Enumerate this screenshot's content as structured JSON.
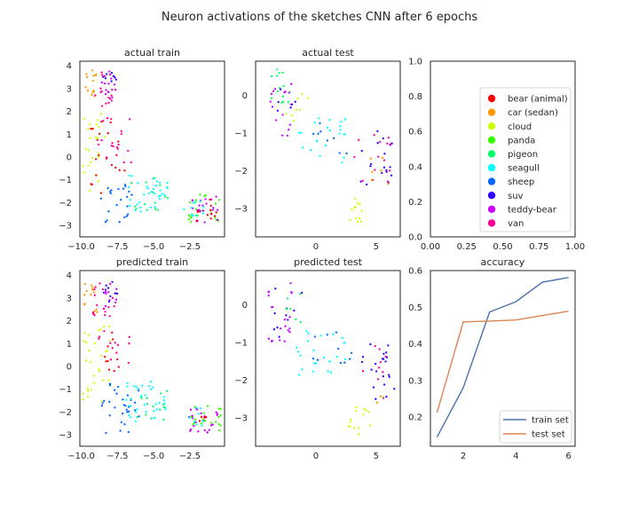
{
  "figure": {
    "title": "Neuron activations of the sketches CNN after 6 epochs"
  },
  "classes": [
    {
      "name": "bear (animal)",
      "color": "#ff0000"
    },
    {
      "name": "car (sedan)",
      "color": "#ff9900"
    },
    {
      "name": "cloud",
      "color": "#ccff00"
    },
    {
      "name": "panda",
      "color": "#33ff00"
    },
    {
      "name": "pigeon",
      "color": "#00ff66"
    },
    {
      "name": "seagull",
      "color": "#00ffff"
    },
    {
      "name": "sheep",
      "color": "#0066ff"
    },
    {
      "name": "suv",
      "color": "#3300ff"
    },
    {
      "name": "teddy-bear",
      "color": "#cc00ff"
    },
    {
      "name": "van",
      "color": "#ff0099"
    }
  ],
  "chart_data": [
    {
      "type": "scatter",
      "title": "actual train",
      "xlim": [
        -10.1,
        -0.1
      ],
      "ylim": [
        -3.5,
        4.2
      ],
      "xticks": [
        -10.0,
        -7.5,
        -5.0,
        -2.5
      ],
      "xtick_labels": [
        "−10.0",
        "−7.5",
        "−5.0",
        "−2.5"
      ],
      "yticks": [
        -3,
        -2,
        -1,
        0,
        1,
        2,
        3,
        4
      ],
      "ytick_labels": [
        "−3",
        "−2",
        "−1",
        "0",
        "1",
        "2",
        "3",
        "4"
      ],
      "clusters": [
        {
          "class": "car (sedan)",
          "x": [
            -9.8,
            -8.9
          ],
          "y": [
            2.4,
            3.8
          ],
          "n": 14
        },
        {
          "class": "van",
          "x": [
            -9.3,
            -7.6
          ],
          "y": [
            2.2,
            3.8
          ],
          "n": 16
        },
        {
          "class": "teddy-bear",
          "x": [
            -8.6,
            -7.5
          ],
          "y": [
            2.6,
            3.8
          ],
          "n": 12
        },
        {
          "class": "suv",
          "x": [
            -8.5,
            -7.6
          ],
          "y": [
            3.0,
            3.8
          ],
          "n": 8
        },
        {
          "class": "cloud",
          "x": [
            -9.9,
            -8.3
          ],
          "y": [
            -1.5,
            1.9
          ],
          "n": 24
        },
        {
          "class": "bear (animal)",
          "x": [
            -9.6,
            -6.8
          ],
          "y": [
            -1.6,
            1.6
          ],
          "n": 20
        },
        {
          "class": "van",
          "x": [
            -8.9,
            -6.5
          ],
          "y": [
            -0.3,
            1.8
          ],
          "n": 18
        },
        {
          "class": "sheep",
          "x": [
            -8.7,
            -6.3
          ],
          "y": [
            -3.0,
            -1.2
          ],
          "n": 22
        },
        {
          "class": "seagull",
          "x": [
            -6.8,
            -4.0
          ],
          "y": [
            -2.4,
            -0.8
          ],
          "n": 34
        },
        {
          "class": "pigeon",
          "x": [
            -6.6,
            -4.0
          ],
          "y": [
            -2.4,
            -0.9
          ],
          "n": 14
        },
        {
          "class": "panda",
          "x": [
            -2.6,
            -0.3
          ],
          "y": [
            -2.9,
            -1.6
          ],
          "n": 22
        },
        {
          "class": "teddy-bear",
          "x": [
            -2.6,
            -0.5
          ],
          "y": [
            -2.9,
            -1.7
          ],
          "n": 22
        },
        {
          "class": "bear (animal)",
          "x": [
            -2.3,
            -0.6
          ],
          "y": [
            -2.8,
            -1.8
          ],
          "n": 12
        },
        {
          "class": "seagull",
          "x": [
            -2.9,
            -1.5
          ],
          "y": [
            -2.6,
            -1.8
          ],
          "n": 10
        }
      ]
    },
    {
      "type": "scatter",
      "title": "actual test",
      "xlim": [
        -5.0,
        7.0
      ],
      "ylim": [
        -3.75,
        0.9
      ],
      "xticks": [
        0,
        5
      ],
      "xtick_labels": [
        "0",
        "5"
      ],
      "yticks": [
        -3,
        -2,
        -1,
        0
      ],
      "ytick_labels": [
        "−3",
        "−2",
        "−1",
        "0"
      ],
      "clusters": [
        {
          "class": "pigeon",
          "x": [
            -3.8,
            -2.0
          ],
          "y": [
            -0.2,
            0.7
          ],
          "n": 14
        },
        {
          "class": "teddy-bear",
          "x": [
            -4.0,
            -1.8
          ],
          "y": [
            -1.1,
            0.3
          ],
          "n": 16
        },
        {
          "class": "suv",
          "x": [
            -3.5,
            -1.5
          ],
          "y": [
            -0.6,
            0.6
          ],
          "n": 6
        },
        {
          "class": "cloud",
          "x": [
            -2.5,
            -0.5
          ],
          "y": [
            -0.8,
            0.2
          ],
          "n": 8
        },
        {
          "class": "seagull",
          "x": [
            -2.0,
            2.5
          ],
          "y": [
            -1.8,
            -0.6
          ],
          "n": 22
        },
        {
          "class": "sheep",
          "x": [
            -0.5,
            2.8
          ],
          "y": [
            -1.6,
            -0.5
          ],
          "n": 8
        },
        {
          "class": "suv",
          "x": [
            3.5,
            6.5
          ],
          "y": [
            -2.5,
            -0.9
          ],
          "n": 18
        },
        {
          "class": "van",
          "x": [
            3.2,
            6.3
          ],
          "y": [
            -2.3,
            -0.9
          ],
          "n": 14
        },
        {
          "class": "cloud",
          "x": [
            2.8,
            4.5
          ],
          "y": [
            -3.5,
            -2.6
          ],
          "n": 12
        },
        {
          "class": "car (sedan)",
          "x": [
            4.5,
            6.2
          ],
          "y": [
            -2.5,
            -1.6
          ],
          "n": 6
        }
      ]
    },
    {
      "type": "scatter",
      "title": "",
      "xlim": [
        0,
        1
      ],
      "ylim": [
        0,
        1
      ],
      "xticks": [
        0,
        0.25,
        0.5,
        0.75,
        1.0
      ],
      "xtick_labels": [
        "0.00",
        "0.25",
        "0.50",
        "0.75",
        "1.00"
      ],
      "yticks": [
        0,
        0.2,
        0.4,
        0.6,
        0.8,
        1.0
      ],
      "ytick_labels": [
        "0.0",
        "0.2",
        "0.4",
        "0.6",
        "0.8",
        "1.0"
      ],
      "legend": "center-right",
      "clusters": []
    },
    {
      "type": "scatter",
      "title": "predicted train",
      "xlim": [
        -10.1,
        -0.1
      ],
      "ylim": [
        -3.5,
        4.2
      ],
      "xticks": [
        -10.0,
        -7.5,
        -5.0,
        -2.5
      ],
      "xtick_labels": [
        "−10.0",
        "−7.5",
        "−5.0",
        "−2.5"
      ],
      "yticks": [
        -3,
        -2,
        -1,
        0,
        1,
        2,
        3,
        4
      ],
      "ytick_labels": [
        "−3",
        "−2",
        "−1",
        "0",
        "1",
        "2",
        "3",
        "4"
      ],
      "clusters": [
        {
          "class": "car (sedan)",
          "x": [
            -9.8,
            -8.8
          ],
          "y": [
            2.2,
            3.8
          ],
          "n": 14
        },
        {
          "class": "van",
          "x": [
            -9.2,
            -7.6
          ],
          "y": [
            2.2,
            3.8
          ],
          "n": 18
        },
        {
          "class": "suv",
          "x": [
            -8.6,
            -7.5
          ],
          "y": [
            2.8,
            3.8
          ],
          "n": 10
        },
        {
          "class": "teddy-bear",
          "x": [
            -8.5,
            -7.5
          ],
          "y": [
            2.6,
            3.6
          ],
          "n": 8
        },
        {
          "class": "cloud",
          "x": [
            -9.9,
            -8.0
          ],
          "y": [
            -1.6,
            1.9
          ],
          "n": 30
        },
        {
          "class": "bear (animal)",
          "x": [
            -9.3,
            -7.3
          ],
          "y": [
            -0.3,
            1.6
          ],
          "n": 10
        },
        {
          "class": "van",
          "x": [
            -8.9,
            -6.6
          ],
          "y": [
            0.0,
            1.6
          ],
          "n": 12
        },
        {
          "class": "sheep",
          "x": [
            -8.6,
            -5.8
          ],
          "y": [
            -3.0,
            -0.7
          ],
          "n": 30
        },
        {
          "class": "seagull",
          "x": [
            -6.9,
            -4.0
          ],
          "y": [
            -2.4,
            -0.6
          ],
          "n": 34
        },
        {
          "class": "pigeon",
          "x": [
            -6.6,
            -4.0
          ],
          "y": [
            -2.4,
            -1.0
          ],
          "n": 14
        },
        {
          "class": "panda",
          "x": [
            -2.5,
            -0.3
          ],
          "y": [
            -2.9,
            -1.6
          ],
          "n": 20
        },
        {
          "class": "teddy-bear",
          "x": [
            -2.6,
            -0.5
          ],
          "y": [
            -2.9,
            -1.8
          ],
          "n": 24
        },
        {
          "class": "seagull",
          "x": [
            -2.9,
            -1.5
          ],
          "y": [
            -2.6,
            -1.8
          ],
          "n": 8
        },
        {
          "class": "bear (animal)",
          "x": [
            -2.0,
            -1.0
          ],
          "y": [
            -2.6,
            -2.1
          ],
          "n": 4
        }
      ]
    },
    {
      "type": "scatter",
      "title": "predicted test",
      "xlim": [
        -5.0,
        7.0
      ],
      "ylim": [
        -3.75,
        0.9
      ],
      "xticks": [
        0,
        5
      ],
      "xtick_labels": [
        "0",
        "5"
      ],
      "yticks": [
        -3,
        -2,
        -1,
        0
      ],
      "ytick_labels": [
        "−3",
        "−2",
        "−1",
        "0"
      ],
      "clusters": [
        {
          "class": "teddy-bear",
          "x": [
            -4.0,
            -1.8
          ],
          "y": [
            -1.0,
            0.7
          ],
          "n": 20
        },
        {
          "class": "suv",
          "x": [
            -3.5,
            -1.0
          ],
          "y": [
            -0.9,
            0.5
          ],
          "n": 10
        },
        {
          "class": "pigeon",
          "x": [
            -2.8,
            -1.0
          ],
          "y": [
            -0.5,
            0.3
          ],
          "n": 6
        },
        {
          "class": "seagull",
          "x": [
            -2.0,
            2.5
          ],
          "y": [
            -1.9,
            -0.7
          ],
          "n": 24
        },
        {
          "class": "sheep",
          "x": [
            -0.5,
            3.0
          ],
          "y": [
            -1.6,
            -0.7
          ],
          "n": 10
        },
        {
          "class": "suv",
          "x": [
            3.5,
            6.5
          ],
          "y": [
            -2.5,
            -0.9
          ],
          "n": 22
        },
        {
          "class": "van",
          "x": [
            3.3,
            5.8
          ],
          "y": [
            -2.0,
            -0.9
          ],
          "n": 8
        },
        {
          "class": "cloud",
          "x": [
            2.7,
            4.5
          ],
          "y": [
            -3.5,
            -2.6
          ],
          "n": 14
        },
        {
          "class": "car (sedan)",
          "x": [
            4.3,
            5.6
          ],
          "y": [
            -2.7,
            -2.4
          ],
          "n": 3
        }
      ]
    },
    {
      "type": "line",
      "title": "accuracy",
      "xlim": [
        0.75,
        6.25
      ],
      "ylim": [
        0.12,
        0.6
      ],
      "xticks": [
        2,
        4,
        6
      ],
      "xtick_labels": [
        "2",
        "4",
        "6"
      ],
      "yticks": [
        0.2,
        0.3,
        0.4,
        0.5,
        0.6
      ],
      "ytick_labels": [
        "0.2",
        "0.3",
        "0.4",
        "0.5",
        "0.6"
      ],
      "x": [
        1,
        2,
        3,
        4,
        5,
        6
      ],
      "series": [
        {
          "name": "train set",
          "color": "#4c72b0",
          "values": [
            0.145,
            0.28,
            0.487,
            0.515,
            0.568,
            0.581
          ]
        },
        {
          "name": "test set",
          "color": "#dd8452",
          "values": [
            0.212,
            0.46,
            0.462,
            0.465,
            0.477,
            0.489
          ]
        }
      ],
      "legend": "lower-right"
    }
  ]
}
